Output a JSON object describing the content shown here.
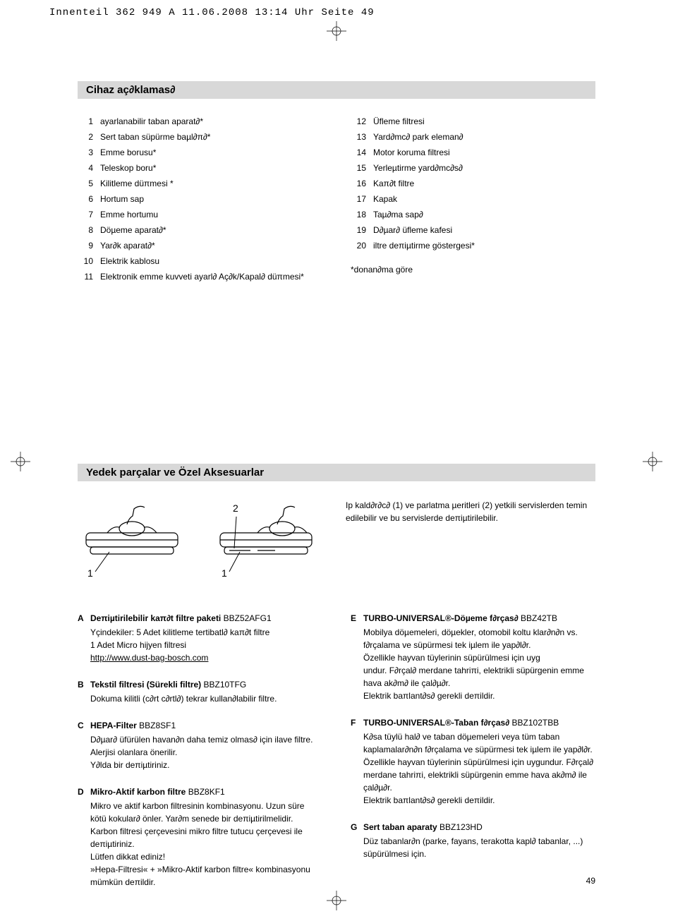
{
  "header_meta": "Innenteil 362 949 A  11.06.2008  13:14 Uhr  Seite 49",
  "section1_title": "Cihaz aç∂klamas∂",
  "parts_left": [
    {
      "n": "1",
      "t": "ayarlanabilir taban aparat∂*"
    },
    {
      "n": "2",
      "t": "Sert taban süpürme baµl∂π∂*"
    },
    {
      "n": "3",
      "t": "Emme borusu*"
    },
    {
      "n": "4",
      "t": "Teleskop boru*"
    },
    {
      "n": "5",
      "t": "Kilitleme düπmesi *"
    },
    {
      "n": "6",
      "t": "Hortum sap"
    },
    {
      "n": "7",
      "t": "Emme hortumu"
    },
    {
      "n": "8",
      "t": "Döµeme aparat∂*"
    },
    {
      "n": "9",
      "t": "Yar∂k aparat∂*"
    },
    {
      "n": "10",
      "t": "Elektrik kablosu"
    },
    {
      "n": "11",
      "t": "Elektronik emme kuvveti ayarl∂ Aç∂k/Kapal∂ düπmesi*"
    }
  ],
  "parts_right": [
    {
      "n": "12",
      "t": "Üfleme filtresi"
    },
    {
      "n": "13",
      "t": "Yard∂mc∂ park eleman∂"
    },
    {
      "n": "14",
      "t": "Motor koruma filtresi"
    },
    {
      "n": "15",
      "t": "Yerleµtirme yard∂mc∂s∂"
    },
    {
      "n": "16",
      "t": "Kaπ∂t filtre"
    },
    {
      "n": "17",
      "t": "Kapak"
    },
    {
      "n": "18",
      "t": "Taµ∂ma sap∂"
    },
    {
      "n": "19",
      "t": "D∂µar∂ üfleme kafesi"
    },
    {
      "n": "20",
      "t": "iltre deπiµtirme göstergesi*"
    }
  ],
  "footnote1": "*donan∂ma göre",
  "section2_title": "Yedek parçalar ve Özel Aksesuarlar",
  "diagram_labels": {
    "a": "1",
    "b1": "1",
    "b2": "2"
  },
  "diagram_desc": "Ip kald∂r∂c∂ (1) ve parlatma µeritleri (2) yetkili servislerden temin edilebilir ve bu servislerde deπiµtirilebilir.",
  "acc_left": [
    {
      "l": "A",
      "title": "Deπiµtirilebilir kaπ∂t filtre paketi",
      "code": " BBZ52AFG1",
      "desc": "Yçindekiler: 5 Adet kilitleme tertibatl∂ kaπ∂t filtre\n1 Adet Micro hijyen filtresi",
      "link": "http://www.dust-bag-bosch.com"
    },
    {
      "l": "B",
      "title": "Tekstil filtresi (Sürekli filtre)",
      "code": " BBZ10TFG",
      "desc": "Dokuma kilitli (c∂rt c∂rtl∂) tekrar kullan∂labilir filtre."
    },
    {
      "l": "C",
      "title": "HEPA-Filter",
      "code": " BBZ8SF1",
      "desc": "D∂µar∂ üfürülen havan∂n daha temiz olmas∂ için ilave filtre.\nAlerjisi olanlara önerilir.\nY∂lda bir deπiµtiriniz."
    },
    {
      "l": "D",
      "title": "Mikro-Aktif karbon filtre",
      "code": " BBZ8KF1",
      "desc": "Mikro ve aktif karbon filtresinin kombinasyonu. Uzun süre kötü kokular∂ önler. Yar∂m senede bir deπiµtirilmelidir. Karbon filtresi çerçevesini mikro filtre tutucu çerçevesi ile deπiµtiriniz.\nLütfen dikkat ediniz!\n»Hepa-Filtresi« + »Mikro-Aktif karbon filtre« kombinasyonu mümkün deπildir."
    }
  ],
  "acc_right": [
    {
      "l": "E",
      "title": "TURBO-UNIVERSAL®-Döµeme f∂rças∂",
      "code": " BBZ42TB",
      "desc": "Mobilya döµemeleri, döµekler, otomobil koltu klar∂n∂n vs. f∂rçalama ve süpürmesi tek iµlem ile yap∂l∂r.\nÖzellikle hayvan tüylerinin süpürülmesi için uyg\nundur. F∂rçal∂ merdane tahriπi, elektrikli süpürgenin emme hava ak∂m∂ ile çal∂µ∂r.\nElektrik baπlant∂s∂ gerekli deπildir."
    },
    {
      "l": "F",
      "title": "TURBO-UNIVERSAL®-Taban f∂rças∂",
      "code": " BBZ102TBB",
      "desc": "K∂sa tüylü hal∂ ve taban döµemeleri veya tüm taban kaplamalar∂n∂n f∂rçalama ve süpürmesi tek iµlem ile yap∂l∂r.\nÖzellikle hayvan tüylerinin süpürülmesi için uygundur. F∂rçal∂ merdane tahriπi, elektrikli süpürgenin emme hava ak∂m∂ ile çal∂µ∂r.\nElektrik baπlant∂s∂ gerekli deπildir."
    },
    {
      "l": "G",
      "title": "Sert taban aparaty",
      "code": " BBZ123HD",
      "desc": "Düz tabanlar∂n (parke, fayans, terakotta kapl∂ tabanlar, ...) süpürülmesi için."
    }
  ],
  "page_number": "49"
}
